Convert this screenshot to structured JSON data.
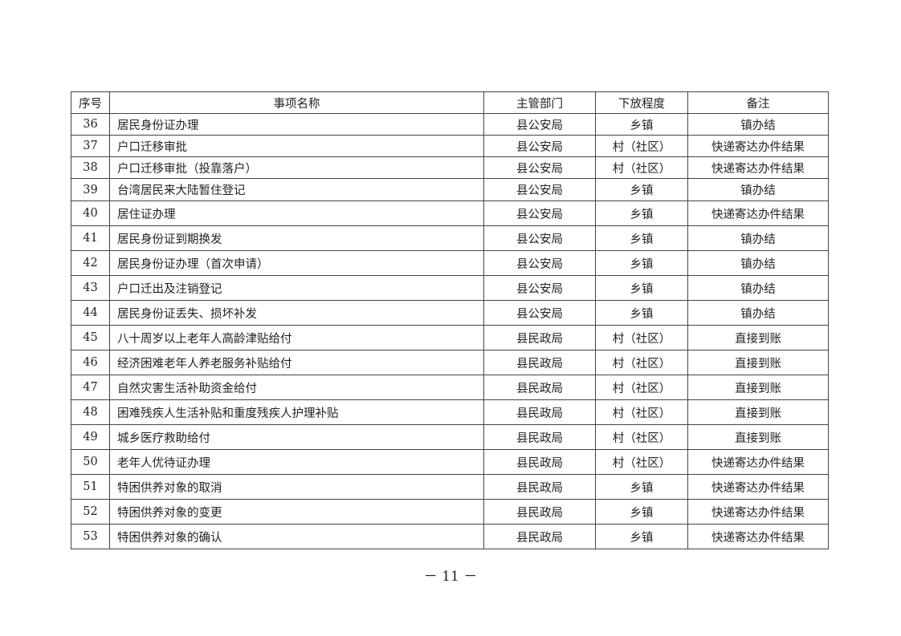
{
  "table": {
    "headers": [
      "序号",
      "事项名称",
      "主管部门",
      "下放程度",
      "备注"
    ],
    "rows": [
      [
        "36",
        "居民身份证办理",
        "县公安局",
        "乡镇",
        "镇办结"
      ],
      [
        "37",
        "户口迁移审批",
        "县公安局",
        "村（社区）",
        "快递寄达办件结果"
      ],
      [
        "38",
        "户口迁移审批（投靠落户）",
        "县公安局",
        "村（社区）",
        "快递寄达办件结果"
      ],
      [
        "39",
        "台湾居民来大陆暂住登记",
        "县公安局",
        "乡镇",
        "镇办结"
      ],
      [
        "40",
        "居住证办理",
        "县公安局",
        "乡镇",
        "快递寄达办件结果"
      ],
      [
        "41",
        "居民身份证到期换发",
        "县公安局",
        "乡镇",
        "镇办结"
      ],
      [
        "42",
        "居民身份证办理（首次申请）",
        "县公安局",
        "乡镇",
        "镇办结"
      ],
      [
        "43",
        "户口迁出及注销登记",
        "县公安局",
        "乡镇",
        "镇办结"
      ],
      [
        "44",
        "居民身份证丢失、损坏补发",
        "县公安局",
        "乡镇",
        "镇办结"
      ],
      [
        "45",
        "八十周岁以上老年人高龄津贴给付",
        "县民政局",
        "村（社区）",
        "直接到账"
      ],
      [
        "46",
        "经济困难老年人养老服务补贴给付",
        "县民政局",
        "村（社区）",
        "直接到账"
      ],
      [
        "47",
        "自然灾害生活补助资金给付",
        "县民政局",
        "村（社区）",
        "直接到账"
      ],
      [
        "48",
        "困难残疾人生活补贴和重度残疾人护理补贴",
        "县民政局",
        "村（社区）",
        "直接到账"
      ],
      [
        "49",
        "城乡医疗救助给付",
        "县民政局",
        "村（社区）",
        "直接到账"
      ],
      [
        "50",
        "老年人优待证办理",
        "县民政局",
        "村（社区）",
        "快递寄达办件结果"
      ],
      [
        "51",
        "特困供养对象的取消",
        "县民政局",
        "乡镇",
        "快递寄达办件结果"
      ],
      [
        "52",
        "特困供养对象的变更",
        "县民政局",
        "乡镇",
        "快递寄达办件结果"
      ],
      [
        "53",
        "特困供养对象的确认",
        "县民政局",
        "乡镇",
        "快递寄达办件结果"
      ]
    ]
  },
  "page_number": "－ 11 －"
}
